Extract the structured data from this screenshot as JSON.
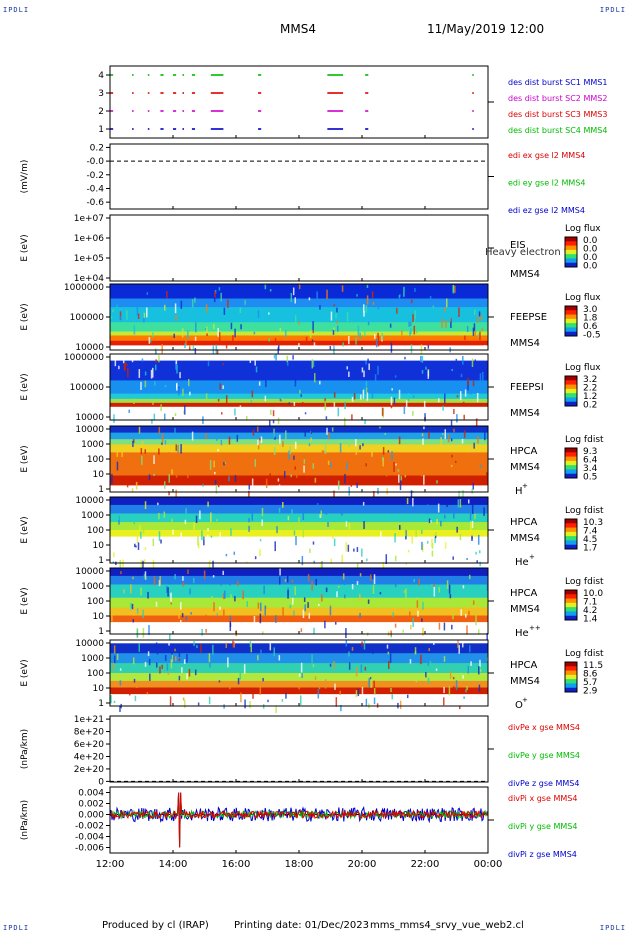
{
  "corner_label": "IPDLI",
  "header": {
    "title": "MMS4",
    "date": "11/May/2019 12:00"
  },
  "footer": {
    "produced_by": "Produced by cl (IRAP)",
    "printing_date": "Printing date: 01/Dec/2023",
    "filename": "mms_mms4_srvy_vue_web2.cl"
  },
  "colors": {
    "red": "#dd0000",
    "green": "#00bb00",
    "blue": "#0000cc",
    "magenta": "#cc00cc"
  },
  "time_axis": {
    "ticks": [
      "12:00",
      "14:00",
      "16:00",
      "18:00",
      "20:00",
      "22:00",
      "00:00"
    ],
    "range_hours": [
      12,
      24
    ]
  },
  "chart_data": [
    {
      "type": "scatter",
      "ylabel": "",
      "ylim": [
        0.5,
        4.5
      ],
      "tick_labels": [
        "4",
        "3",
        "2",
        "1"
      ],
      "tick_values": [
        4,
        3,
        2,
        1
      ],
      "legend": [
        {
          "text": "des dist burst SC1 MMS1",
          "color": "#0000cc"
        },
        {
          "text": "des dist burst SC2 MMS2",
          "color": "#cc00cc"
        },
        {
          "text": "des dist burst SC3 MMS3",
          "color": "#dd0000"
        },
        {
          "text": "des dist burst SC4 MMS4",
          "color": "#00bb00"
        }
      ],
      "burst_intervals": [
        [
          12.0,
          12.1
        ],
        [
          12.7,
          12.75
        ],
        [
          13.2,
          13.25
        ],
        [
          13.6,
          13.7
        ],
        [
          14.0,
          14.1
        ],
        [
          14.3,
          14.35
        ],
        [
          14.6,
          14.7
        ],
        [
          15.2,
          15.6
        ],
        [
          16.7,
          16.8
        ],
        [
          18.9,
          19.4
        ],
        [
          20.1,
          20.2
        ],
        [
          23.5,
          23.55
        ]
      ],
      "rows": [
        1,
        2,
        3,
        4
      ]
    },
    {
      "type": "line",
      "ylabel": "(mV/m)",
      "ylim": [
        -0.7,
        0.25
      ],
      "tick_labels": [
        "0.2",
        "-0.0",
        "-0.2",
        "-0.4",
        "-0.6"
      ],
      "tick_values": [
        0.2,
        0.0,
        -0.2,
        -0.4,
        -0.6
      ],
      "zero_line": 0.0,
      "legend": [
        {
          "text": "edi ex gse l2 MMS4",
          "color": "#dd0000"
        },
        {
          "text": "edi ey gse l2 MMS4",
          "color": "#00bb00"
        },
        {
          "text": "edi ez gse l2 MMS4",
          "color": "#0000cc"
        }
      ]
    },
    {
      "type": "heatmap",
      "ylabel": "E (eV)",
      "log_y": true,
      "ylim": [
        10000,
        10000000
      ],
      "tick_labels": [
        "1e+07",
        "1e+06",
        "1e+05",
        "1e+04"
      ],
      "instrument": "EIS",
      "spacecraft": "MMS4",
      "extra": "Heavy electron to",
      "colorbar_title": "Log flux",
      "colorbar_ticks": [
        "0.0",
        "0.0",
        "0.0",
        "0.0"
      ],
      "empty": true
    },
    {
      "type": "heatmap",
      "ylabel": "E (eV)",
      "log_y": true,
      "ylim": [
        10000,
        1000000
      ],
      "tick_labels": [
        "1000000",
        "100000",
        "10000"
      ],
      "instrument": "FEEPSE",
      "spacecraft": "MMS4",
      "colorbar_title": "Log flux",
      "colorbar_ticks": [
        "3.0",
        "1.8",
        "0.6",
        "-0.5"
      ],
      "bands": [
        {
          "from": 0.0,
          "to": 0.22,
          "color": "#0a2ad8"
        },
        {
          "from": 0.22,
          "to": 0.35,
          "color": "#1e8cf0"
        },
        {
          "from": 0.35,
          "to": 0.58,
          "color": "#18c0e0"
        },
        {
          "from": 0.58,
          "to": 0.72,
          "color": "#3ee0a0"
        },
        {
          "from": 0.72,
          "to": 0.78,
          "color": "#c8e838"
        },
        {
          "from": 0.78,
          "to": 0.86,
          "color": "#ff7a00"
        },
        {
          "from": 0.86,
          "to": 0.93,
          "color": "#e42000"
        },
        {
          "from": 0.93,
          "to": 1.0,
          "color": "#ffffff"
        }
      ]
    },
    {
      "type": "heatmap",
      "ylabel": "E (eV)",
      "log_y": true,
      "ylim": [
        10000,
        1000000
      ],
      "tick_labels": [
        "1000000",
        "100000",
        "10000"
      ],
      "instrument": "FEEPSI",
      "spacecraft": "MMS4",
      "colorbar_title": "Log flux",
      "colorbar_ticks": [
        "3.2",
        "2.2",
        "1.2",
        "0.2"
      ],
      "bands": [
        {
          "from": 0.0,
          "to": 0.1,
          "color": "#ffffff"
        },
        {
          "from": 0.1,
          "to": 0.4,
          "color": "#1030d8"
        },
        {
          "from": 0.4,
          "to": 0.6,
          "color": "#1890f0"
        },
        {
          "from": 0.6,
          "to": 0.68,
          "color": "#20c8d8"
        },
        {
          "from": 0.68,
          "to": 0.74,
          "color": "#a0e048"
        },
        {
          "from": 0.74,
          "to": 0.8,
          "color": "#d02000"
        },
        {
          "from": 0.8,
          "to": 1.0,
          "color": "#ffffff"
        }
      ]
    },
    {
      "type": "heatmap",
      "ylabel": "E (eV)",
      "log_y": true,
      "ylim": [
        1,
        30000
      ],
      "tick_labels": [
        "10000",
        "1000",
        "100",
        "10",
        "1"
      ],
      "instrument": "HPCA",
      "spacecraft": "MMS4",
      "species": "H",
      "species_sup": "+",
      "colorbar_title": "Log fdist",
      "colorbar_ticks": [
        "9.3",
        "6.4",
        "3.4",
        "0.5"
      ],
      "bands": [
        {
          "from": 0.0,
          "to": 0.1,
          "color": "#1030c8"
        },
        {
          "from": 0.1,
          "to": 0.2,
          "color": "#20a0e8"
        },
        {
          "from": 0.2,
          "to": 0.28,
          "color": "#80e080"
        },
        {
          "from": 0.28,
          "to": 0.4,
          "color": "#f0d020"
        },
        {
          "from": 0.4,
          "to": 0.75,
          "color": "#f07010"
        },
        {
          "from": 0.75,
          "to": 0.9,
          "color": "#d02000"
        },
        {
          "from": 0.9,
          "to": 1.0,
          "color": "#ffffff"
        }
      ]
    },
    {
      "type": "heatmap",
      "ylabel": "E (eV)",
      "log_y": true,
      "ylim": [
        1,
        30000
      ],
      "tick_labels": [
        "10000",
        "1000",
        "100",
        "10",
        "1"
      ],
      "instrument": "HPCA",
      "spacecraft": "MMS4",
      "species": "He",
      "species_sup": "+",
      "colorbar_title": "Log fdist",
      "colorbar_ticks": [
        "10.3",
        "7.4",
        "4.5",
        "1.7"
      ],
      "bands": [
        {
          "from": 0.0,
          "to": 0.12,
          "color": "#1020c0"
        },
        {
          "from": 0.12,
          "to": 0.25,
          "color": "#2080e8"
        },
        {
          "from": 0.25,
          "to": 0.38,
          "color": "#28d0c0"
        },
        {
          "from": 0.38,
          "to": 0.5,
          "color": "#a8e838"
        },
        {
          "from": 0.5,
          "to": 0.6,
          "color": "#e8f020"
        },
        {
          "from": 0.6,
          "to": 1.0,
          "color": "#ffffff"
        }
      ]
    },
    {
      "type": "heatmap",
      "ylabel": "E (eV)",
      "log_y": true,
      "ylim": [
        1,
        30000
      ],
      "tick_labels": [
        "10000",
        "1000",
        "100",
        "10",
        "1"
      ],
      "instrument": "HPCA",
      "spacecraft": "MMS4",
      "species": "He",
      "species_sup": "++",
      "colorbar_title": "Log fdist",
      "colorbar_ticks": [
        "10.0",
        "7.1",
        "4.2",
        "1.4"
      ],
      "bands": [
        {
          "from": 0.0,
          "to": 0.12,
          "color": "#1020c0"
        },
        {
          "from": 0.12,
          "to": 0.25,
          "color": "#2080e8"
        },
        {
          "from": 0.25,
          "to": 0.45,
          "color": "#28d0c0"
        },
        {
          "from": 0.45,
          "to": 0.6,
          "color": "#a8e838"
        },
        {
          "from": 0.6,
          "to": 0.72,
          "color": "#f0c020"
        },
        {
          "from": 0.72,
          "to": 0.82,
          "color": "#f06010"
        },
        {
          "from": 0.82,
          "to": 1.0,
          "color": "#ffffff"
        }
      ]
    },
    {
      "type": "heatmap",
      "ylabel": "E (eV)",
      "log_y": true,
      "ylim": [
        1,
        30000
      ],
      "tick_labels": [
        "10000",
        "1000",
        "100",
        "10",
        "1"
      ],
      "instrument": "HPCA",
      "spacecraft": "MMS4",
      "species": "O",
      "species_sup": "+",
      "colorbar_title": "Log fdist",
      "colorbar_ticks": [
        "11.5",
        "8.6",
        "5.7",
        "2.9"
      ],
      "bands": [
        {
          "from": 0.0,
          "to": 0.05,
          "color": "#ffffff"
        },
        {
          "from": 0.05,
          "to": 0.2,
          "color": "#1030c8"
        },
        {
          "from": 0.2,
          "to": 0.35,
          "color": "#2090e8"
        },
        {
          "from": 0.35,
          "to": 0.5,
          "color": "#30d0b0"
        },
        {
          "from": 0.5,
          "to": 0.62,
          "color": "#b0e840"
        },
        {
          "from": 0.62,
          "to": 0.72,
          "color": "#f09020"
        },
        {
          "from": 0.72,
          "to": 0.82,
          "color": "#d02000"
        },
        {
          "from": 0.82,
          "to": 1.0,
          "color": "#ffffff"
        }
      ]
    },
    {
      "type": "line",
      "ylabel": "(nPa/km)",
      "ylim": [
        -1e+19,
        1.05e+21
      ],
      "tick_labels": [
        "1e+21",
        "8e+20",
        "6e+20",
        "4e+20",
        "2e+20",
        "0"
      ],
      "tick_values": [
        1e+21,
        8e+20,
        6e+20,
        4e+20,
        2e+20,
        0
      ],
      "zero_line": 0,
      "legend": [
        {
          "text": "divPe x gse MMS4",
          "color": "#dd0000"
        },
        {
          "text": "divPe y gse MMS4",
          "color": "#00bb00"
        },
        {
          "text": "divPe z gse MMS4",
          "color": "#0000cc"
        }
      ]
    },
    {
      "type": "line",
      "ylabel": "(nPa/km)",
      "ylim": [
        -0.007,
        0.005
      ],
      "tick_labels": [
        "0.004",
        "0.002",
        "0.000",
        "-0.002",
        "-0.004",
        "-0.006"
      ],
      "tick_values": [
        0.004,
        0.002,
        0.0,
        -0.002,
        -0.004,
        -0.006
      ],
      "zero_line": 0.0,
      "legend": [
        {
          "text": "divPi x gse MMS4",
          "color": "#dd0000"
        },
        {
          "text": "divPi y gse MMS4",
          "color": "#00bb00"
        },
        {
          "text": "divPi z gse MMS4",
          "color": "#0000cc"
        }
      ],
      "noise_amplitude": 0.0008,
      "spike_at_hours": 14.2,
      "spike_range": [
        -0.006,
        0.004
      ]
    }
  ]
}
